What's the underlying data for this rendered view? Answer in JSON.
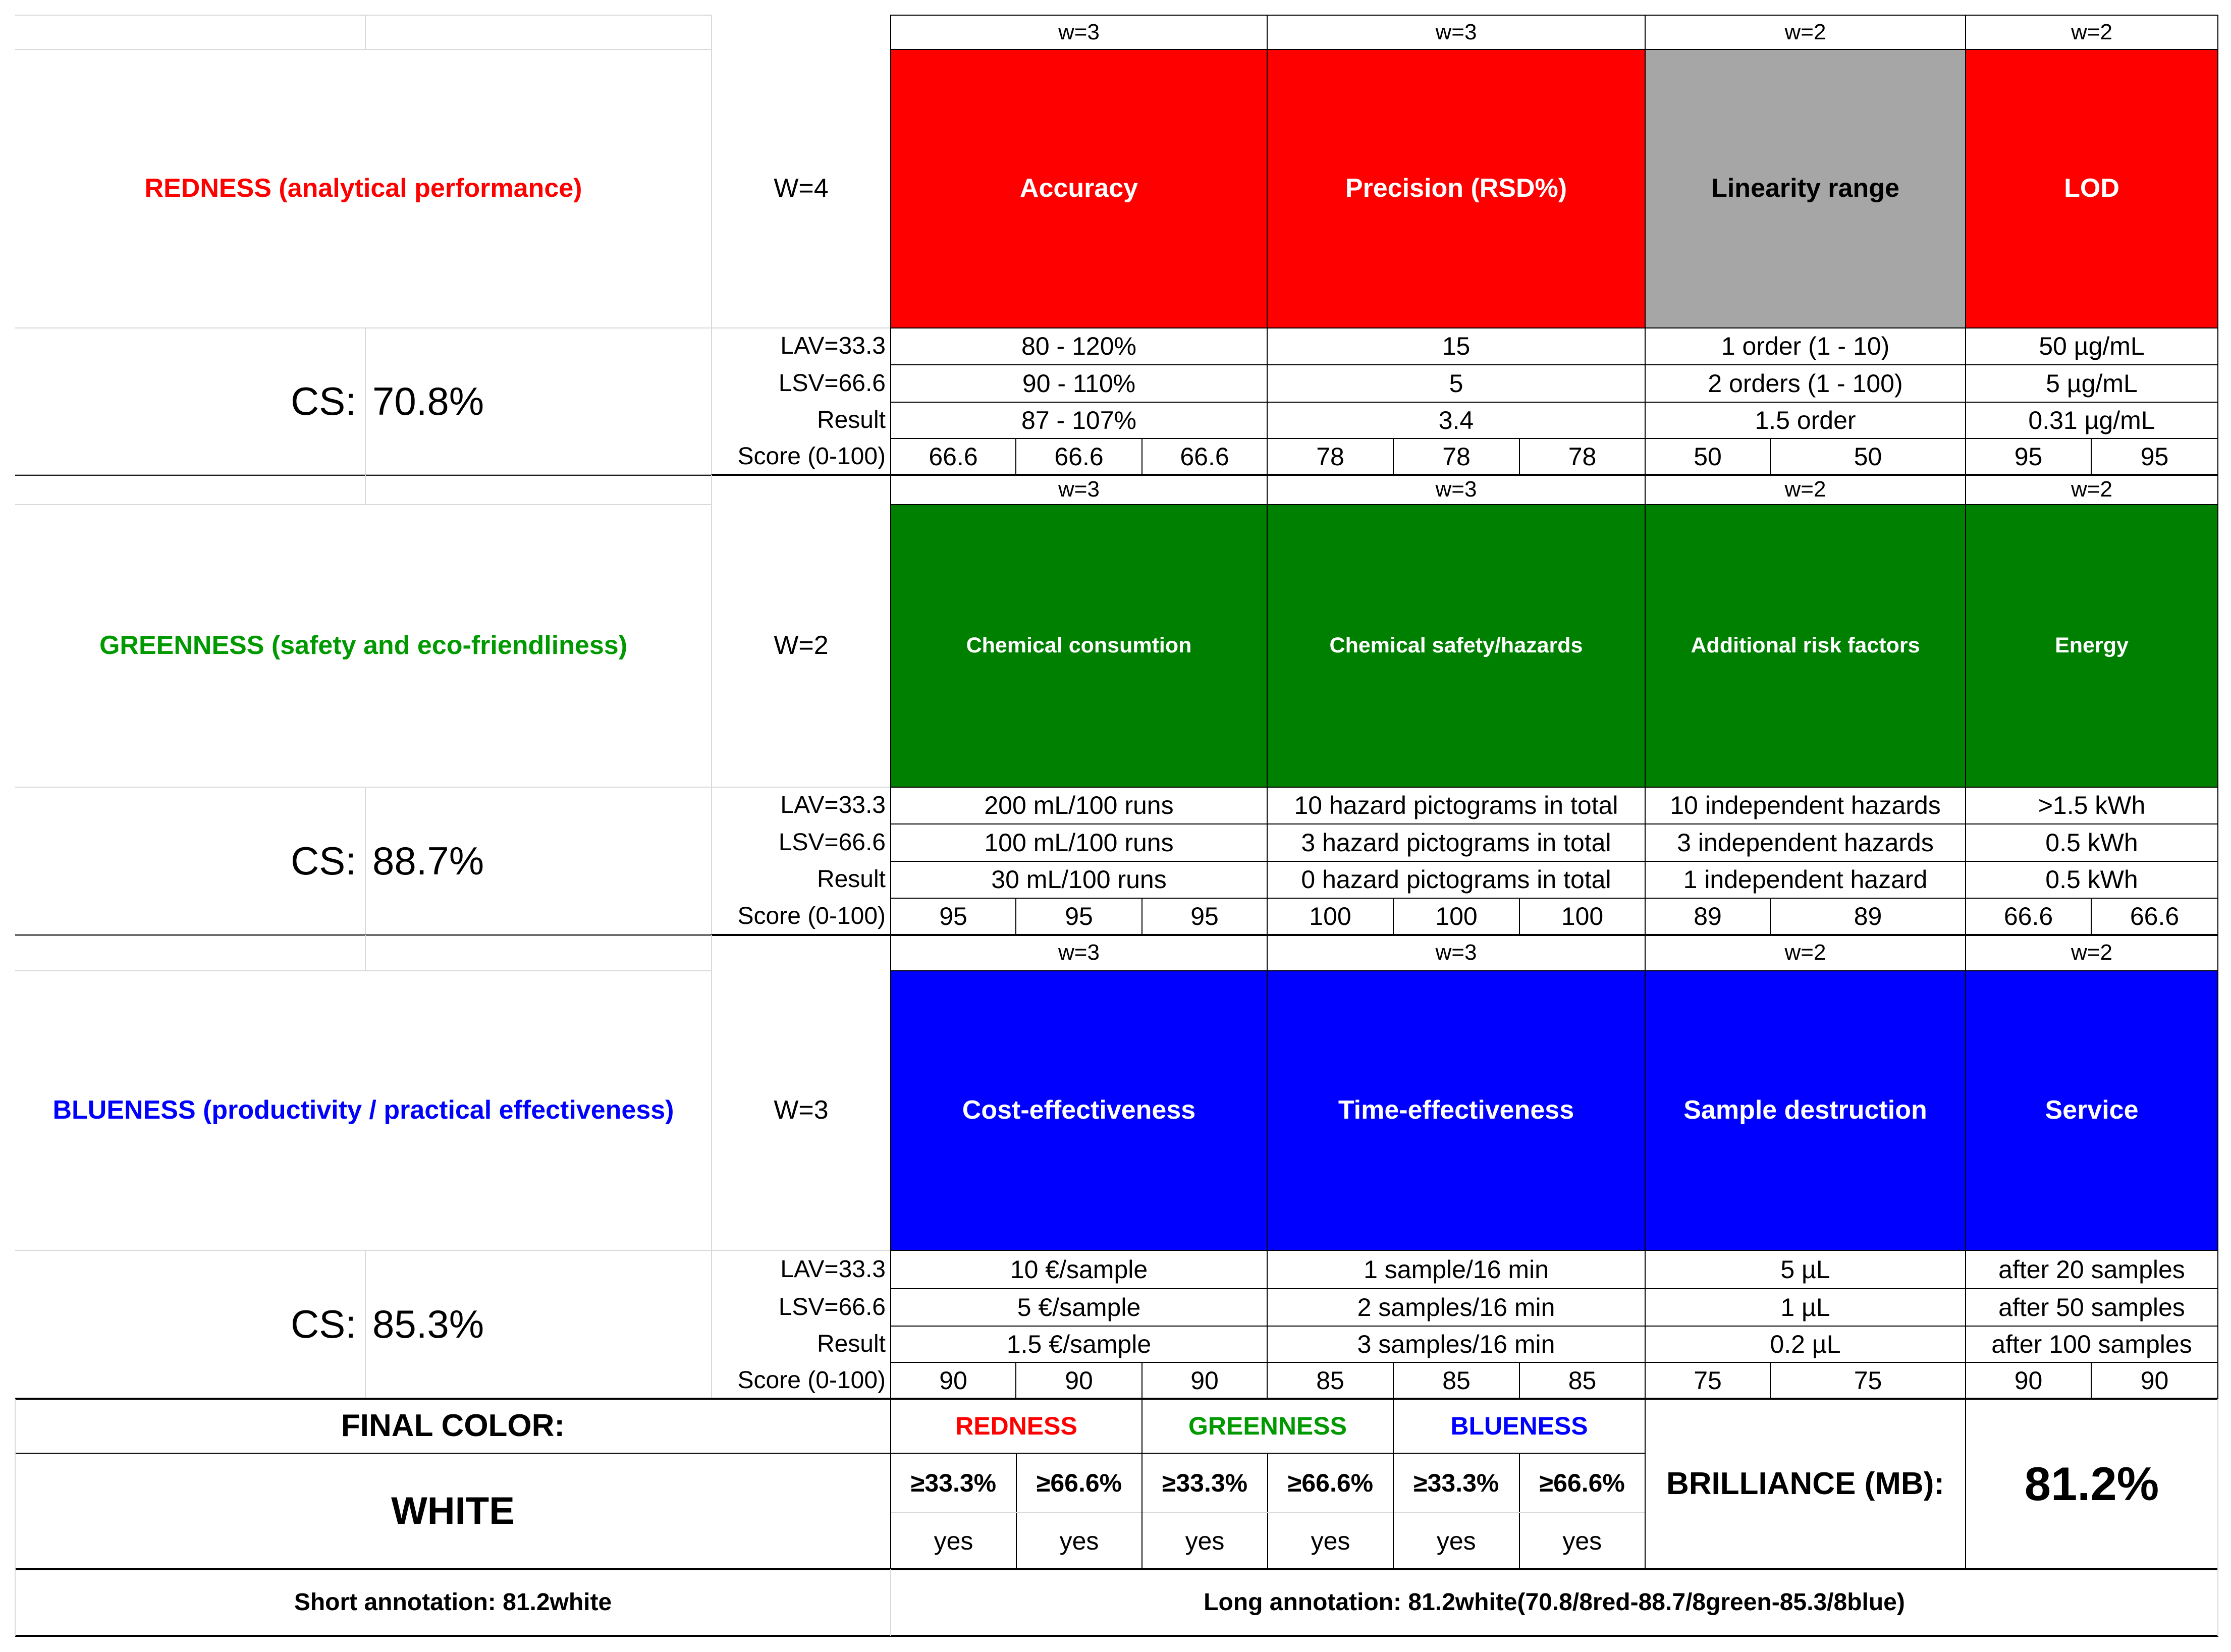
{
  "colors": {
    "red": "#ff0000",
    "green": "#008000",
    "blue": "#0000ff",
    "grey": "#a6a6a6",
    "red_text": "#ff0000",
    "green_text": "#009900",
    "blue_text": "#0000ff"
  },
  "row_labels": {
    "lav": "LAV=33.3",
    "lsv": "LSV=66.6",
    "result": "Result",
    "score": "Score (0-100)"
  },
  "cs_label": "CS:",
  "sections": [
    {
      "key": "red",
      "title": "REDNESS (analytical performance)",
      "W": "W=4",
      "cs": "70.8%",
      "criteria": [
        {
          "w": "w=3",
          "name": "Accuracy",
          "fill": "red",
          "lav": "80 - 120%",
          "lsv": "90 - 110%",
          "result": "87 - 107%",
          "scores": [
            "66.6",
            "66.6",
            "66.6"
          ]
        },
        {
          "w": "w=3",
          "name": "Precision (RSD%)",
          "fill": "red",
          "lav": "15",
          "lsv": "5",
          "result": "3.4",
          "scores": [
            "78",
            "78",
            "78"
          ]
        },
        {
          "w": "w=2",
          "name": "Linearity range",
          "fill": "grey",
          "lav": "1 order (1 - 10)",
          "lsv": "2 orders (1 - 100)",
          "result": "1.5 order",
          "scores": [
            "50",
            "50"
          ]
        },
        {
          "w": "w=2",
          "name": "LOD",
          "fill": "red",
          "lav": "50 µg/mL",
          "lsv": "5 µg/mL",
          "result": "0.31 µg/mL",
          "scores": [
            "95",
            "95"
          ]
        }
      ]
    },
    {
      "key": "green",
      "title": "GREENNESS (safety and eco-friendliness)",
      "W": "W=2",
      "cs": "88.7%",
      "criteria": [
        {
          "w": "w=3",
          "name": "Chemical consumtion",
          "fill": "green",
          "lav": "200 mL/100 runs",
          "lsv": "100 mL/100 runs",
          "result": "30 mL/100 runs",
          "scores": [
            "95",
            "95",
            "95"
          ]
        },
        {
          "w": "w=3",
          "name": "Chemical safety/hazards",
          "fill": "green",
          "lav": "10 hazard pictograms in total",
          "lsv": "3 hazard pictograms in total",
          "result": "0 hazard pictograms in total",
          "scores": [
            "100",
            "100",
            "100"
          ]
        },
        {
          "w": "w=2",
          "name": "Additional risk factors",
          "fill": "green",
          "lav": "10 independent hazards",
          "lsv": "3 independent hazards",
          "result": "1 independent hazard",
          "scores": [
            "89",
            "89"
          ]
        },
        {
          "w": "w=2",
          "name": "Energy",
          "fill": "green",
          "lav": ">1.5 kWh",
          "lsv": "0.5 kWh",
          "result": "0.5 kWh",
          "scores": [
            "66.6",
            "66.6"
          ]
        }
      ]
    },
    {
      "key": "blue",
      "title": "BLUENESS (productivity / practical effectiveness)",
      "W": "W=3",
      "cs": "85.3%",
      "criteria": [
        {
          "w": "w=3",
          "name": "Cost-effectiveness",
          "fill": "blue",
          "lav": "10 €/sample",
          "lsv": "5 €/sample",
          "result": "1.5 €/sample",
          "scores": [
            "90",
            "90",
            "90"
          ]
        },
        {
          "w": "w=3",
          "name": "Time-effectiveness",
          "fill": "blue",
          "lav": "1 sample/16 min",
          "lsv": "2 samples/16 min",
          "result": "3 samples/16 min",
          "scores": [
            "85",
            "85",
            "85"
          ]
        },
        {
          "w": "w=2",
          "name": "Sample destruction",
          "fill": "blue",
          "lav": "5 µL",
          "lsv": "1 µL",
          "result": "0.2 µL",
          "scores": [
            "75",
            "75"
          ]
        },
        {
          "w": "w=2",
          "name": "Service",
          "fill": "blue",
          "lav": "after 20 samples",
          "lsv": "after 50 samples",
          "result": "after 100 samples",
          "scores": [
            "90",
            "90"
          ]
        }
      ]
    }
  ],
  "final": {
    "label": "FINAL COLOR:",
    "color": "WHITE",
    "groups": [
      {
        "name": "REDNESS",
        "color": "red_text",
        "thresholds": [
          "≥33.3%",
          "≥66.6%"
        ],
        "results": [
          "yes",
          "yes"
        ]
      },
      {
        "name": "GREENNESS",
        "color": "green_text",
        "thresholds": [
          "≥33.3%",
          "≥66.6%"
        ],
        "results": [
          "yes",
          "yes"
        ]
      },
      {
        "name": "BLUENESS",
        "color": "blue_text",
        "thresholds": [
          "≥33.3%",
          "≥66.6%"
        ],
        "results": [
          "yes",
          "yes"
        ]
      }
    ],
    "brilliance_label": "BRILLIANCE (MB):",
    "brilliance_value": "81.2%",
    "short_annotation": "Short annotation: 81.2white",
    "long_annotation": "Long annotation: 81.2white(70.8/8red-88.7/8green-85.3/8blue)"
  }
}
